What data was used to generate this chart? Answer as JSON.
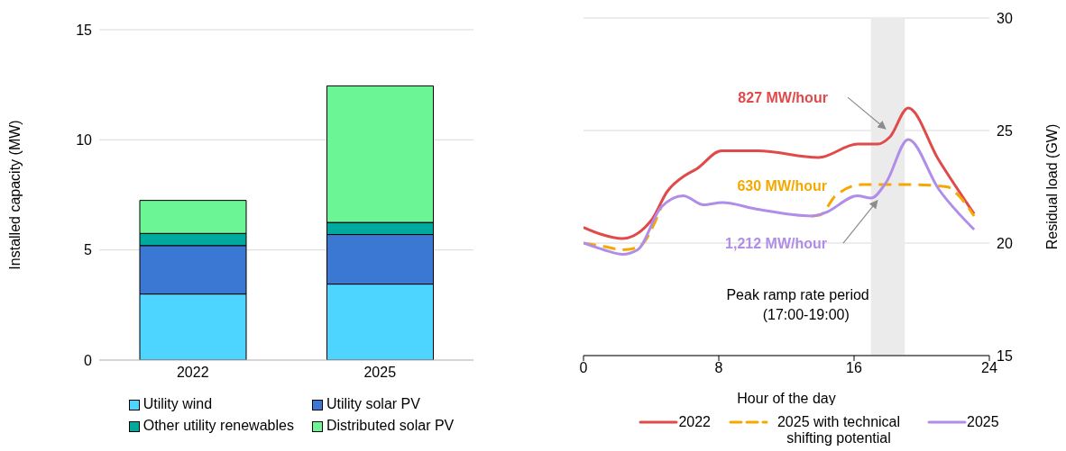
{
  "chart_data": [
    {
      "type": "bar",
      "stacked": true,
      "categories": [
        "2022",
        "2025"
      ],
      "ylabel": "Installed capacity (MW)",
      "ylim": [
        0,
        15
      ],
      "yticks": [
        0,
        5,
        10,
        15
      ],
      "grid": "y",
      "legend": "bottom",
      "series": [
        {
          "name": "Utility wind",
          "color": "#4dd4ff",
          "values": [
            3.0,
            3.45
          ]
        },
        {
          "name": "Utility solar PV",
          "color": "#3b78d4",
          "values": [
            2.2,
            2.25
          ]
        },
        {
          "name": "Other utility renewables",
          "color": "#00a99d",
          "values": [
            0.55,
            0.55
          ]
        },
        {
          "name": "Distributed solar PV",
          "color": "#6cf595",
          "values": [
            1.5,
            6.2
          ]
        }
      ]
    },
    {
      "type": "line",
      "xlabel": "Hour of the day",
      "y2label": "Residual load (GW)",
      "xlim": [
        0,
        24
      ],
      "xticks": [
        0,
        8,
        16,
        24
      ],
      "y2lim": [
        15,
        30
      ],
      "y2ticks": [
        15,
        20,
        25,
        30
      ],
      "grid": "y",
      "legend": "bottom",
      "bands": [
        {
          "axis": "x",
          "from": 17,
          "to": 19,
          "label": "Peak ramp rate period (17:00-19:00)",
          "color": "#ebebeb"
        }
      ],
      "annotations": [
        "827 MW/hour",
        "630 MW/hour",
        "1,212 MW/hour"
      ],
      "series": [
        {
          "name": "2022",
          "color": "#e04a4a",
          "axis": "y2",
          "x": [
            0,
            1,
            2.3,
            4,
            4.96,
            6,
            6.7,
            8.16,
            10.3,
            13.9,
            16.2,
            17.4,
            18.1,
            19.2,
            21,
            23.1
          ],
          "values": [
            20.7,
            20.4,
            20.2,
            21.0,
            22.3,
            23.0,
            23.3,
            24.1,
            24.1,
            23.8,
            24.4,
            24.4,
            24.7,
            26.0,
            23.7,
            21.3
          ]
        },
        {
          "name": "2025 with technical shifting potential",
          "color": "#f5a800",
          "axis": "y2",
          "line_style": "dashed",
          "x": [
            0,
            1.2,
            2.3,
            3.2,
            4.6,
            5.9,
            7.1,
            8.2,
            10.3,
            13.5,
            14.0,
            14.9,
            16.5,
            19.2,
            21.5,
            22.2,
            23.1
          ],
          "values": [
            20.0,
            19.85,
            19.7,
            19.8,
            21.6,
            null,
            null,
            null,
            null,
            21.2,
            21.25,
            22.1,
            22.6,
            22.6,
            22.5,
            22.1,
            21.2
          ]
        },
        {
          "name": "2025",
          "color": "#b08de8",
          "axis": "y2",
          "x": [
            0,
            1.2,
            2.3,
            3.2,
            4.6,
            5.9,
            7.1,
            8.2,
            10.3,
            13.5,
            14.3,
            16.2,
            17.0,
            17.9,
            19.2,
            21,
            23.1
          ],
          "values": [
            20.0,
            19.7,
            19.5,
            19.7,
            21.6,
            22.1,
            21.7,
            21.8,
            21.5,
            21.2,
            21.35,
            22.1,
            22.0,
            22.7,
            24.6,
            22.4,
            20.6
          ]
        }
      ]
    }
  ]
}
